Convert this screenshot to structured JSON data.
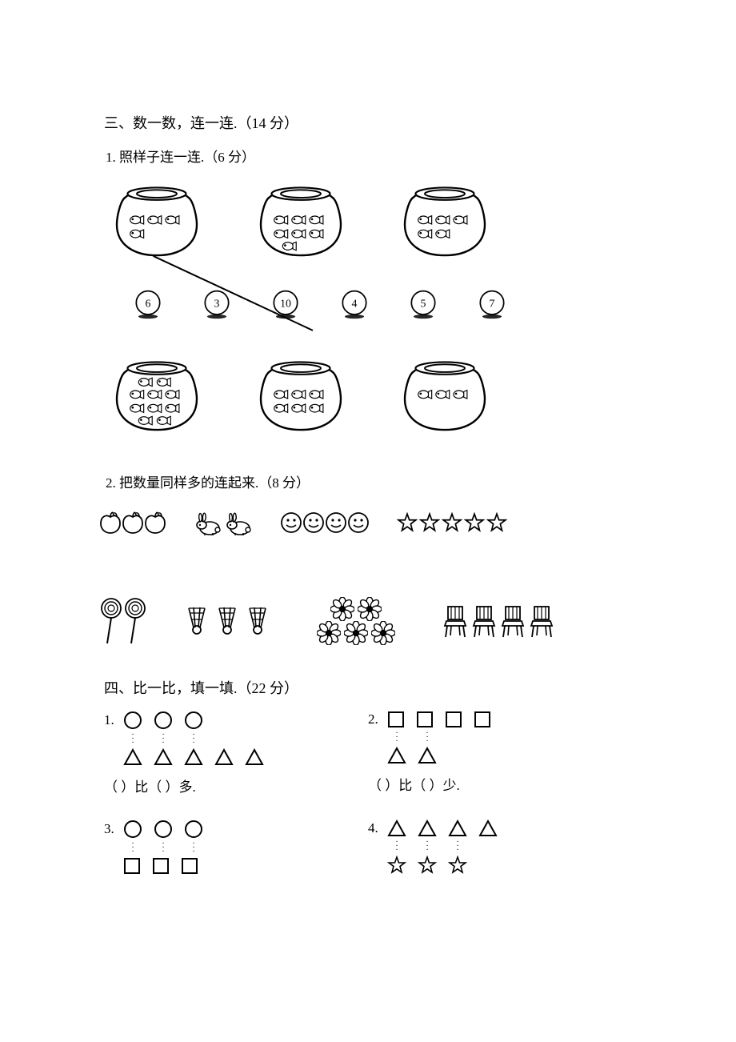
{
  "section3": {
    "title": "三、数一数，连一连.（14 分）",
    "q1": {
      "title": "1. 照样子连一连.（6 分）",
      "top_fish": [
        4,
        7,
        5
      ],
      "numbers": [
        "6",
        "3",
        "10",
        "4",
        "5",
        "7"
      ],
      "bottom_fish": [
        10,
        6,
        3
      ]
    },
    "q2": {
      "title": "2. 把数量同样多的连起来.（8 分）",
      "top_counts": {
        "apples": 3,
        "rabbits": 2,
        "faces": 4,
        "stars": 5
      },
      "bot_counts": {
        "lollipops": 2,
        "shuttles": 3,
        "flowers": 5,
        "chairs": 4
      }
    }
  },
  "section4": {
    "title": "四、比一比，填一填.（22 分）",
    "items": [
      {
        "index": "1.",
        "topShape": "circle",
        "topCount": 3,
        "botShape": "triangle",
        "botCount": 5,
        "dotsCount": 3,
        "answer": "（  ）比（  ）多."
      },
      {
        "index": "2.",
        "topShape": "square",
        "topCount": 4,
        "botShape": "triangle",
        "botCount": 2,
        "dotsCount": 2,
        "answer": "（  ）比（  ）少."
      },
      {
        "index": "3.",
        "topShape": "circle",
        "topCount": 3,
        "botShape": "square",
        "botCount": 3,
        "dotsCount": 3,
        "answer": ""
      },
      {
        "index": "4.",
        "topShape": "triangle",
        "topCount": 4,
        "botShape": "star",
        "botCount": 3,
        "dotsCount": 3,
        "answer": ""
      }
    ]
  },
  "style": {
    "stroke": "#000000",
    "fill": "#ffffff",
    "page_bg": "#ffffff"
  }
}
